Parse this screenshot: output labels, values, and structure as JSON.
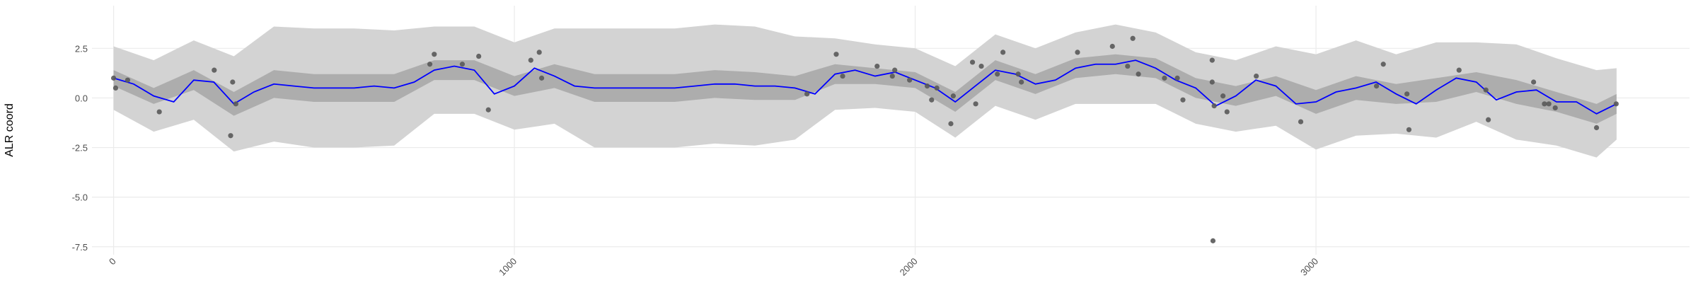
{
  "chart_data": {
    "type": "smooth",
    "y_label": "ALR coord",
    "xlim": [
      -54,
      3932
    ],
    "ylim": [
      -7.9,
      4.65
    ],
    "xticks": [
      0,
      1000,
      2000,
      3000
    ],
    "yticks": [
      2.5,
      {
        "value": 0,
        "label": "0.0"
      },
      -2.5,
      {
        "value": -5,
        "label": "-5.0"
      },
      -7.5
    ],
    "grid": true,
    "bands": [
      {
        "color": "#d3d3d3",
        "x": [
          0,
          100,
          200,
          300,
          400,
          500,
          600,
          700,
          800,
          900,
          1000,
          1100,
          1200,
          1300,
          1400,
          1500,
          1600,
          1700,
          1800,
          1900,
          2000,
          2100,
          2200,
          2300,
          2400,
          2500,
          2600,
          2700,
          2800,
          2900,
          3000,
          3100,
          3200,
          3300,
          3400,
          3500,
          3600,
          3700,
          3750
        ],
        "upper": [
          2.6,
          1.9,
          2.9,
          2.1,
          3.6,
          3.5,
          3.5,
          3.4,
          3.6,
          3.6,
          2.8,
          3.5,
          3.5,
          3.5,
          3.5,
          3.7,
          3.6,
          3.1,
          3.0,
          2.7,
          2.5,
          1.6,
          3.2,
          2.5,
          3.3,
          3.7,
          3.3,
          2.3,
          1.9,
          2.6,
          2.2,
          2.9,
          2.2,
          2.8,
          2.8,
          2.7,
          2.0,
          1.4,
          1.5
        ],
        "lower": [
          -0.6,
          -1.7,
          -1.1,
          -2.7,
          -2.2,
          -2.5,
          -2.5,
          -2.4,
          -0.8,
          -0.8,
          -1.6,
          -1.3,
          -2.5,
          -2.5,
          -2.5,
          -2.3,
          -2.4,
          -2.1,
          -0.6,
          -0.5,
          -0.7,
          -2.0,
          -0.4,
          -1.1,
          -0.3,
          -0.3,
          -0.3,
          -1.3,
          -1.7,
          -1.4,
          -2.6,
          -1.9,
          -1.8,
          -2.0,
          -1.2,
          -2.1,
          -2.4,
          -3.0,
          -2.1
        ]
      },
      {
        "color": "#adadad",
        "x": [
          0,
          100,
          200,
          300,
          400,
          500,
          600,
          700,
          800,
          900,
          1000,
          1100,
          1200,
          1300,
          1400,
          1500,
          1600,
          1700,
          1800,
          1900,
          2000,
          2100,
          2200,
          2300,
          2400,
          2500,
          2600,
          2700,
          2800,
          2900,
          3000,
          3100,
          3200,
          3300,
          3400,
          3500,
          3600,
          3700,
          3750
        ],
        "upper": [
          1.4,
          0.5,
          1.4,
          0.3,
          1.4,
          1.2,
          1.2,
          1.2,
          1.9,
          1.9,
          1.1,
          1.7,
          1.2,
          1.2,
          1.2,
          1.4,
          1.3,
          1.1,
          1.7,
          1.5,
          1.3,
          0.3,
          1.9,
          1.2,
          2.0,
          2.2,
          2.0,
          1.0,
          0.6,
          1.1,
          0.4,
          1.1,
          0.7,
          1.0,
          1.3,
          0.9,
          0.3,
          -0.3,
          0.2
        ],
        "lower": [
          0.6,
          -0.3,
          0.4,
          -0.9,
          0.0,
          -0.2,
          -0.2,
          -0.2,
          0.9,
          0.9,
          0.1,
          0.5,
          -0.2,
          -0.2,
          -0.2,
          0.0,
          -0.1,
          -0.1,
          0.7,
          0.7,
          0.5,
          -0.7,
          0.9,
          0.2,
          1.0,
          1.2,
          1.0,
          0.0,
          -0.4,
          0.1,
          -0.8,
          -0.1,
          -0.3,
          -0.2,
          0.3,
          -0.3,
          -0.7,
          -1.3,
          -0.8
        ]
      }
    ],
    "line": {
      "color": "#0000ff",
      "x": [
        0,
        50,
        100,
        150,
        200,
        250,
        300,
        350,
        400,
        450,
        500,
        550,
        600,
        650,
        700,
        750,
        800,
        850,
        900,
        950,
        1000,
        1050,
        1100,
        1150,
        1200,
        1250,
        1300,
        1350,
        1400,
        1450,
        1500,
        1550,
        1600,
        1650,
        1700,
        1750,
        1800,
        1850,
        1900,
        1950,
        2000,
        2050,
        2100,
        2150,
        2200,
        2250,
        2300,
        2350,
        2400,
        2450,
        2500,
        2550,
        2600,
        2650,
        2700,
        2750,
        2800,
        2850,
        2900,
        2950,
        3000,
        3050,
        3100,
        3150,
        3200,
        3250,
        3300,
        3350,
        3400,
        3450,
        3500,
        3550,
        3600,
        3650,
        3700,
        3750
      ],
      "values": [
        1.0,
        0.7,
        0.1,
        -0.2,
        0.9,
        0.8,
        -0.3,
        0.3,
        0.7,
        0.6,
        0.5,
        0.5,
        0.5,
        0.6,
        0.5,
        0.8,
        1.4,
        1.6,
        1.4,
        0.2,
        0.6,
        1.5,
        1.1,
        0.6,
        0.5,
        0.5,
        0.5,
        0.5,
        0.5,
        0.6,
        0.7,
        0.7,
        0.6,
        0.6,
        0.5,
        0.2,
        1.2,
        1.4,
        1.1,
        1.3,
        0.9,
        0.5,
        -0.2,
        0.6,
        1.4,
        1.2,
        0.7,
        0.9,
        1.5,
        1.7,
        1.7,
        1.9,
        1.5,
        0.9,
        0.5,
        -0.4,
        0.1,
        0.9,
        0.6,
        -0.3,
        -0.2,
        0.3,
        0.5,
        0.8,
        0.2,
        -0.3,
        0.4,
        1.0,
        0.8,
        -0.1,
        0.3,
        0.4,
        -0.2,
        -0.2,
        -0.8,
        -0.3
      ]
    },
    "points": {
      "color": "#595959",
      "x": [
        0,
        5,
        35,
        114,
        251,
        297,
        292,
        305,
        789,
        800,
        870,
        911,
        935,
        1041,
        1062,
        1068,
        1730,
        1803,
        1819,
        1905,
        1943,
        1949,
        1986,
        2030,
        2041,
        2054,
        2089,
        2095,
        2143,
        2151,
        2165,
        2205,
        2219,
        2257,
        2265,
        2405,
        2492,
        2530,
        2543,
        2557,
        2622,
        2654,
        2668,
        2741,
        2741,
        2746,
        2743,
        2768,
        2778,
        2851,
        2962,
        3151,
        3168,
        3227,
        3232,
        3357,
        3424,
        3430,
        3543,
        3570,
        3581,
        3597,
        3700,
        3749
      ],
      "y": [
        1.0,
        0.5,
        0.9,
        -0.7,
        1.4,
        0.8,
        -1.9,
        -0.3,
        1.7,
        2.2,
        1.7,
        2.1,
        -0.6,
        1.9,
        2.3,
        1.0,
        0.2,
        2.2,
        1.1,
        1.6,
        1.1,
        1.4,
        0.9,
        0.6,
        -0.1,
        0.5,
        -1.3,
        0.1,
        1.8,
        -0.3,
        1.6,
        1.2,
        2.3,
        1.2,
        0.8,
        2.3,
        2.6,
        1.6,
        3.0,
        1.2,
        1.0,
        1.0,
        -0.1,
        1.9,
        0.8,
        -0.4,
        -7.2,
        0.1,
        -0.7,
        1.1,
        -1.2,
        0.6,
        1.7,
        0.2,
        -1.6,
        1.4,
        0.4,
        -1.1,
        0.8,
        -0.3,
        -0.3,
        -0.5,
        -1.5,
        -0.3
      ]
    }
  }
}
